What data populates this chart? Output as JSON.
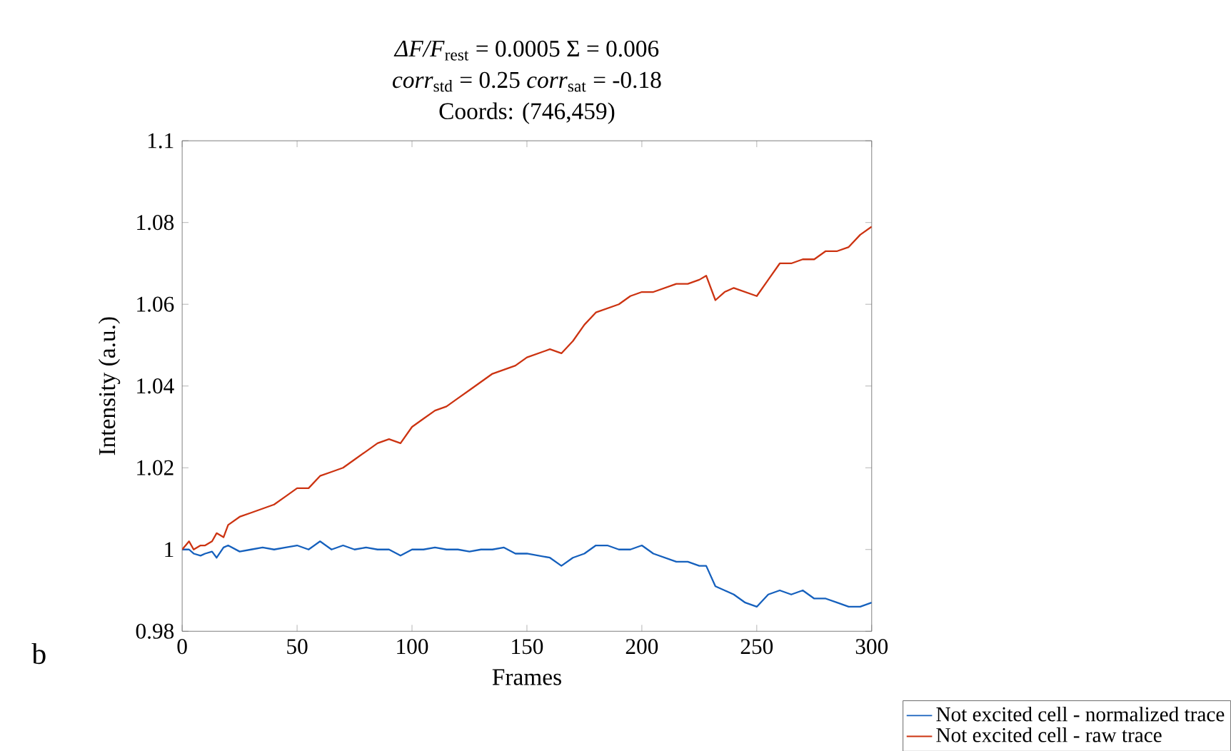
{
  "chart_data": {
    "type": "line",
    "title": "*ΔF/F*$_{rest}$ = 0.0005 Σ = 0.006",
    "subtitle": "*corr*$_{std}$ = 0.25 *corr*$_{sat}$ = -0.18",
    "annotations": [
      "Coords: (746,459)",
      "b"
    ],
    "xlabel": "Frames",
    "ylabel": "Intensity (a.u.)",
    "x": [
      0,
      3,
      5,
      8,
      10,
      13,
      15,
      18,
      20,
      25,
      30,
      35,
      40,
      45,
      50,
      55,
      60,
      65,
      70,
      75,
      80,
      85,
      90,
      95,
      100,
      105,
      110,
      115,
      120,
      125,
      130,
      135,
      140,
      145,
      150,
      155,
      160,
      165,
      170,
      175,
      180,
      185,
      190,
      195,
      200,
      205,
      210,
      215,
      220,
      225,
      228,
      232,
      236,
      240,
      245,
      250,
      255,
      260,
      265,
      270,
      275,
      280,
      285,
      290,
      295,
      300
    ],
    "series": [
      {
        "name": "Not excited cell - normalized trace",
        "color": "#1560bd",
        "values": [
          1.0,
          1.0,
          0.999,
          0.9985,
          0.999,
          0.9995,
          0.998,
          1.0005,
          1.001,
          0.9995,
          1.0,
          1.0005,
          1.0,
          1.0005,
          1.001,
          1.0,
          1.002,
          1.0,
          1.001,
          1.0,
          1.0005,
          1.0,
          1.0,
          0.9985,
          1.0,
          1.0,
          1.0005,
          1.0,
          1.0,
          0.9995,
          1.0,
          1.0,
          1.0005,
          0.999,
          0.999,
          0.9985,
          0.998,
          0.996,
          0.998,
          0.999,
          1.001,
          1.001,
          1.0,
          1.0,
          1.001,
          0.999,
          0.998,
          0.997,
          0.997,
          0.996,
          0.996,
          0.991,
          0.99,
          0.989,
          0.987,
          0.986,
          0.989,
          0.99,
          0.989,
          0.99,
          0.988,
          0.988,
          0.987,
          0.986,
          0.986,
          0.987
        ]
      },
      {
        "name": "Not excited cell - raw trace",
        "color": "#cc3311",
        "values": [
          1.0,
          1.002,
          1.0,
          1.001,
          1.001,
          1.002,
          1.004,
          1.003,
          1.006,
          1.008,
          1.009,
          1.01,
          1.011,
          1.013,
          1.015,
          1.015,
          1.018,
          1.019,
          1.02,
          1.022,
          1.024,
          1.026,
          1.027,
          1.026,
          1.03,
          1.032,
          1.034,
          1.035,
          1.037,
          1.039,
          1.041,
          1.043,
          1.044,
          1.045,
          1.047,
          1.048,
          1.049,
          1.048,
          1.051,
          1.055,
          1.058,
          1.059,
          1.06,
          1.062,
          1.063,
          1.063,
          1.064,
          1.065,
          1.065,
          1.066,
          1.067,
          1.061,
          1.063,
          1.064,
          1.063,
          1.062,
          1.066,
          1.07,
          1.07,
          1.071,
          1.071,
          1.073,
          1.073,
          1.074,
          1.077,
          1.079
        ]
      }
    ],
    "xlim": [
      0,
      300
    ],
    "xticks": [
      0,
      50,
      100,
      150,
      200,
      250,
      300
    ],
    "ylim": [
      0.98,
      1.1
    ],
    "yticks": [
      0.98,
      1,
      1.02,
      1.04,
      1.06,
      1.08,
      1.1
    ],
    "grid": false,
    "legend": "right"
  }
}
